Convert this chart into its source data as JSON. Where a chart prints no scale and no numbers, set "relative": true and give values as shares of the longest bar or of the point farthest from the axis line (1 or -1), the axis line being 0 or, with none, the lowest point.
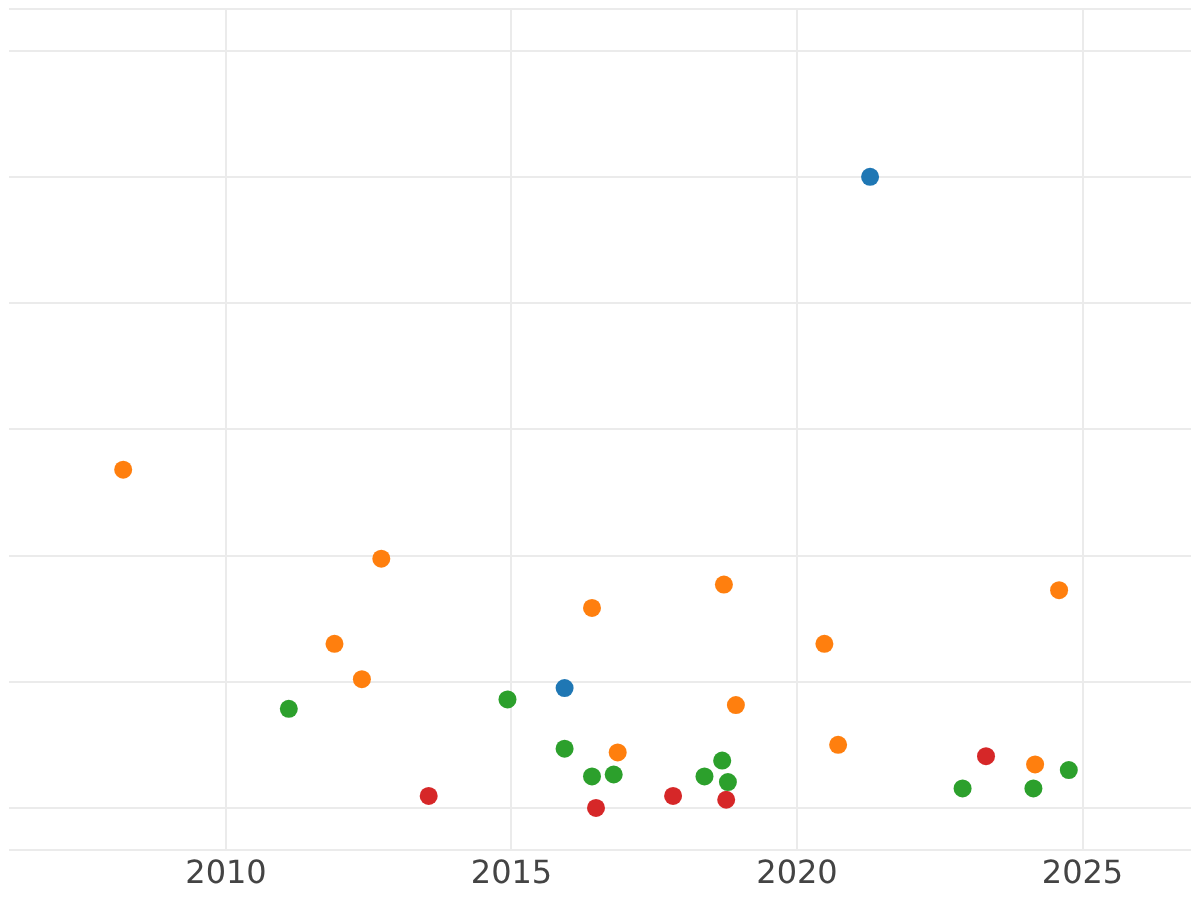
{
  "chart_data": {
    "type": "scatter",
    "relative": true,
    "xlim": [
      2006.2,
      2026.9
    ],
    "xticks": [
      2010,
      2015,
      2020,
      2025
    ],
    "grid": true,
    "marker": "circle",
    "legend": false,
    "series": [
      {
        "color": "#1f77b4",
        "x": [
          2021.28,
          2015.93
        ],
        "values": [
          1.0,
          0.19
        ]
      },
      {
        "color": "#ff7f0e",
        "x": [
          2008.2,
          2012.72,
          2011.9,
          2012.38,
          2016.41,
          2016.86,
          2018.72,
          2018.93,
          2020.48,
          2020.72,
          2024.17,
          2024.59
        ],
        "values": [
          0.536,
          0.395,
          0.26,
          0.204,
          0.317,
          0.088,
          0.354,
          0.163,
          0.26,
          0.1,
          0.069,
          0.345
        ]
      },
      {
        "color": "#2ca02c",
        "x": [
          2011.1,
          2014.93,
          2015.93,
          2016.41,
          2016.79,
          2018.38,
          2018.69,
          2018.79,
          2022.9,
          2024.14,
          2024.76
        ],
        "values": [
          0.157,
          0.172,
          0.094,
          0.05,
          0.053,
          0.05,
          0.075,
          0.041,
          0.031,
          0.031,
          0.06
        ]
      },
      {
        "color": "#d62728",
        "x": [
          2013.55,
          2016.48,
          2017.83,
          2018.76,
          2023.31
        ],
        "values": [
          0.019,
          0,
          0.019,
          0.013,
          0.082
        ]
      }
    ]
  }
}
